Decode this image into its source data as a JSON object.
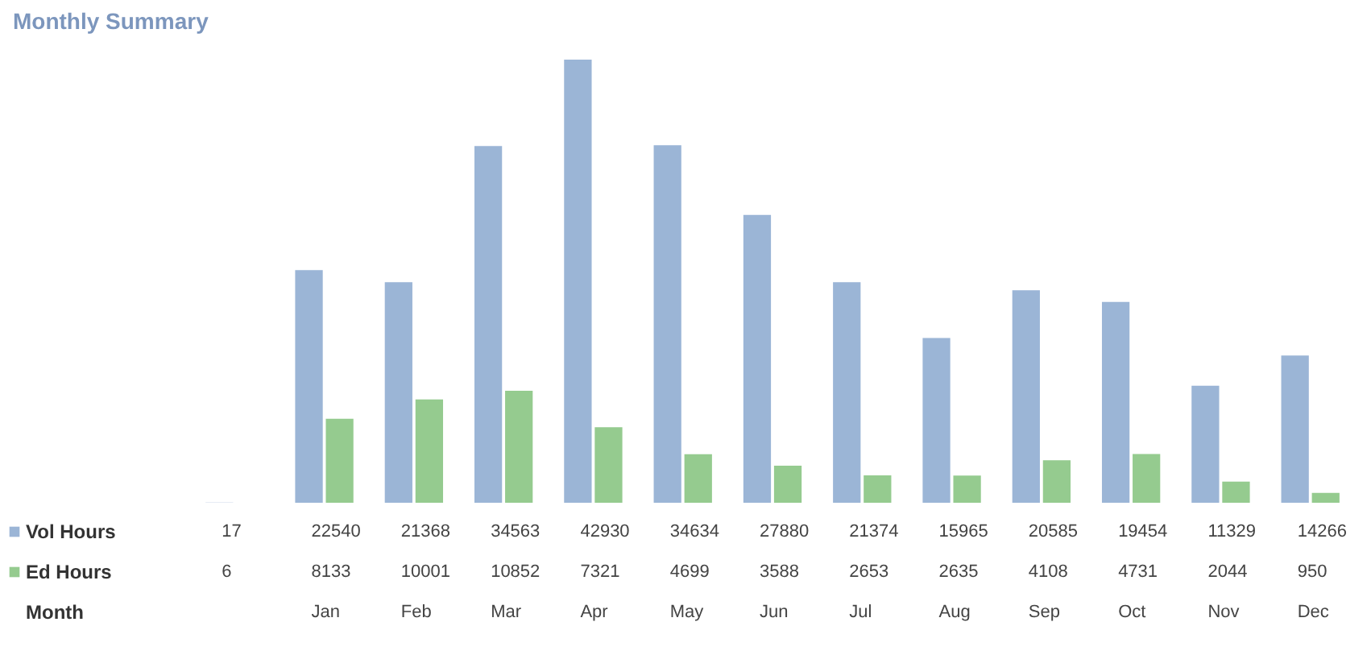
{
  "chart_data": {
    "type": "bar",
    "title": "Monthly Summary",
    "annotations": [
      "Month"
    ],
    "categories": [
      null,
      "Jan",
      "Feb",
      "Mar",
      "Apr",
      "May",
      "Jun",
      "Jul",
      "Aug",
      "Sep",
      "Oct",
      "Nov",
      "Dec"
    ],
    "series": [
      {
        "name": "Vol Hours",
        "color": "#9bb5d6",
        "values": [
          17,
          22540,
          21368,
          34563,
          42930,
          34634,
          27880,
          21374,
          15965,
          20585,
          19454,
          11329,
          14266
        ]
      },
      {
        "name": "Ed Hours",
        "color": "#95cb8f",
        "values": [
          6,
          8133,
          10001,
          10852,
          7321,
          4699,
          3588,
          2653,
          2635,
          4108,
          4731,
          2044,
          950
        ]
      }
    ],
    "data_labels": true,
    "legend": "bottom left"
  }
}
